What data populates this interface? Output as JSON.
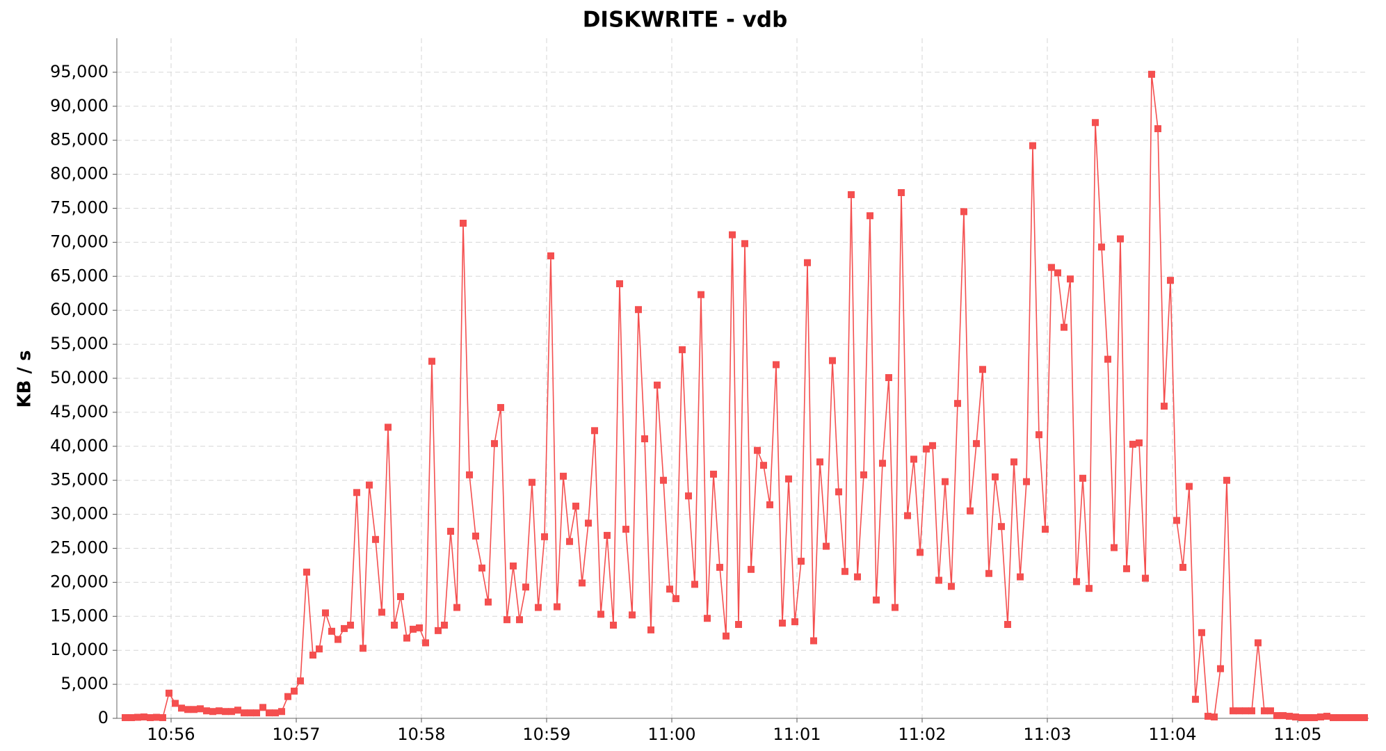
{
  "chart_data": {
    "type": "line",
    "title": "DISKWRITE - vdb",
    "y_label": "KB / s",
    "color": "#f44f4f",
    "grid": true,
    "x": [
      3338,
      3341,
      3344,
      3347,
      3350,
      3353,
      3356,
      3359,
      3362,
      3365,
      3368,
      3371,
      3374,
      3377,
      3380,
      3383,
      3386,
      3389,
      3392,
      3395,
      3398,
      3401,
      3404,
      3407,
      3410,
      3413,
      3416,
      3419,
      3422,
      3425,
      3428,
      3431,
      3434,
      3437,
      3440,
      3443,
      3446,
      3449,
      3452,
      3455,
      3458,
      3461,
      3464,
      3467,
      3470,
      3473,
      3476,
      3479,
      3482,
      3485,
      3488,
      3491,
      3494,
      3497,
      3500,
      3503,
      3506,
      3509,
      3512,
      3515,
      3518,
      3521,
      3524,
      3527,
      3530,
      3533,
      3536,
      3539,
      3542,
      3545,
      3548,
      3551,
      3554,
      3557,
      3560,
      3563,
      3566,
      3569,
      3572,
      3575,
      3578,
      3581,
      3584,
      3587,
      3590,
      3593,
      3596,
      3599,
      3602,
      3605,
      3608,
      3611,
      3614,
      3617,
      3620,
      3623,
      3626,
      3629,
      3632,
      3635,
      3638,
      3641,
      3644,
      3647,
      3650,
      3653,
      3656,
      3659,
      3662,
      3665,
      3668,
      3671,
      3674,
      3677,
      3680,
      3683,
      3686,
      3689,
      3692,
      3695,
      3698,
      3701,
      3704,
      3707,
      3710,
      3713,
      3716,
      3719,
      3722,
      3725,
      3728,
      3731,
      3734,
      3737,
      3740,
      3743,
      3746,
      3749,
      3752,
      3755,
      3758,
      3761,
      3764,
      3767,
      3770,
      3773,
      3776,
      3779,
      3782,
      3785,
      3788,
      3791,
      3794,
      3797,
      3800,
      3803,
      3806,
      3809,
      3812,
      3815,
      3818,
      3821,
      3824,
      3827,
      3830,
      3833,
      3836,
      3839,
      3842,
      3845,
      3848,
      3851,
      3854,
      3857,
      3860,
      3863,
      3866,
      3869,
      3872,
      3875,
      3878,
      3881,
      3884,
      3887,
      3890,
      3893,
      3896,
      3899,
      3902,
      3905,
      3908,
      3911,
      3914,
      3917,
      3920,
      3923,
      3926,
      3929,
      3932
    ],
    "values": [
      100,
      100,
      150,
      200,
      100,
      150,
      100,
      3700,
      2200,
      1500,
      1300,
      1300,
      1400,
      1100,
      1000,
      1100,
      1000,
      1000,
      1200,
      800,
      800,
      800,
      1600,
      800,
      800,
      1000,
      3200,
      4000,
      5500,
      21500,
      9300,
      10200,
      15500,
      12800,
      11600,
      13200,
      13700,
      33200,
      10300,
      34300,
      26300,
      15600,
      42800,
      13700,
      17900,
      11800,
      13100,
      13300,
      11100,
      52500,
      12900,
      13700,
      27500,
      16300,
      72800,
      35800,
      26800,
      22100,
      17100,
      40400,
      45700,
      14500,
      22400,
      14500,
      19300,
      34700,
      16300,
      26700,
      68000,
      16400,
      35600,
      26000,
      31200,
      19900,
      28700,
      42300,
      15300,
      26900,
      13700,
      63900,
      27800,
      15200,
      60100,
      41100,
      13000,
      49000,
      35000,
      19000,
      17600,
      54200,
      32700,
      19700,
      62300,
      14700,
      35900,
      22200,
      12100,
      71100,
      13800,
      69800,
      21900,
      39400,
      37200,
      31400,
      52000,
      14000,
      35200,
      14200,
      23100,
      67000,
      11400,
      37700,
      25300,
      52600,
      33300,
      21600,
      77000,
      20800,
      35800,
      73900,
      17400,
      37500,
      50100,
      16300,
      77300,
      29800,
      38100,
      24400,
      39600,
      40100,
      20300,
      34800,
      19400,
      46300,
      74500,
      30500,
      40400,
      51300,
      21300,
      35500,
      28200,
      13800,
      37700,
      20800,
      34800,
      84200,
      41700,
      27800,
      66300,
      65500,
      57500,
      64600,
      20100,
      35300,
      19100,
      87600,
      69300,
      52800,
      25100,
      70500,
      22000,
      40300,
      40500,
      20600,
      94700,
      86700,
      45900,
      64400,
      29100,
      22200,
      34100,
      2800,
      12600,
      300,
      200,
      7300,
      35000,
      1100,
      1100,
      1100,
      1100,
      11100,
      1100,
      1100,
      400,
      400,
      300,
      200,
      100,
      100,
      100,
      200,
      300,
      100,
      100,
      100,
      100,
      100,
      100
    ],
    "xlim": [
      3334,
      3934
    ],
    "xticks": [
      {
        "value": 3360,
        "label": "10:56"
      },
      {
        "value": 3420,
        "label": "10:57"
      },
      {
        "value": 3480,
        "label": "10:58"
      },
      {
        "value": 3540,
        "label": "10:59"
      },
      {
        "value": 3600,
        "label": "11:00"
      },
      {
        "value": 3660,
        "label": "11:01"
      },
      {
        "value": 3720,
        "label": "11:02"
      },
      {
        "value": 3780,
        "label": "11:03"
      },
      {
        "value": 3840,
        "label": "11:04"
      },
      {
        "value": 3900,
        "label": "11:05"
      }
    ],
    "ylim": [
      0,
      100000
    ],
    "yticks": [
      0,
      {
        "value": 5000,
        "label": "5,000"
      },
      {
        "value": 10000,
        "label": "10,000"
      },
      {
        "value": 15000,
        "label": "15,000"
      },
      {
        "value": 20000,
        "label": "20,000"
      },
      {
        "value": 25000,
        "label": "25,000"
      },
      {
        "value": 30000,
        "label": "30,000"
      },
      {
        "value": 35000,
        "label": "35,000"
      },
      {
        "value": 40000,
        "label": "40,000"
      },
      {
        "value": 45000,
        "label": "45,000"
      },
      {
        "value": 50000,
        "label": "50,000"
      },
      {
        "value": 55000,
        "label": "55,000"
      },
      {
        "value": 60000,
        "label": "60,000"
      },
      {
        "value": 65000,
        "label": "65,000"
      },
      {
        "value": 70000,
        "label": "70,000"
      },
      {
        "value": 75000,
        "label": "75,000"
      },
      {
        "value": 80000,
        "label": "80,000"
      },
      {
        "value": 85000,
        "label": "85,000"
      },
      {
        "value": 90000,
        "label": "90,000"
      },
      {
        "value": 95000,
        "label": "95,000"
      }
    ]
  }
}
